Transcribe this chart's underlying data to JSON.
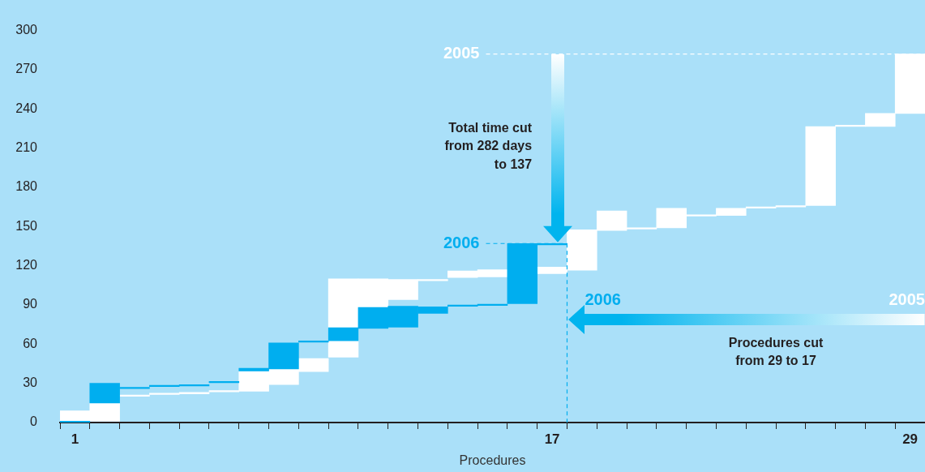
{
  "chart_data": {
    "type": "bar",
    "xlabel": "Procedures",
    "categories": [
      "1",
      null,
      null,
      null,
      null,
      null,
      null,
      null,
      null,
      null,
      null,
      null,
      null,
      null,
      null,
      null,
      "17",
      null,
      null,
      null,
      null,
      null,
      null,
      null,
      null,
      null,
      null,
      null,
      "29"
    ],
    "series": [
      {
        "color": "#ffffff",
        "base": [
          1,
          1,
          20,
          21.5,
          22,
          23.5,
          24,
          29,
          39,
          50,
          88,
          94,
          108.5,
          111,
          111.5,
          null,
          114,
          116.5,
          147,
          148,
          149,
          158,
          158.5,
          164,
          165,
          166,
          226.5,
          226.5,
          236.5
        ],
        "values": [
          8,
          14,
          1,
          1,
          1,
          1,
          15,
          12,
          10,
          60,
          22,
          15.5,
          1,
          5,
          5.5,
          null,
          5,
          31,
          15,
          1,
          15,
          1,
          5.5,
          1,
          1,
          60.5,
          1,
          10,
          45.5
        ]
      },
      {
        "color": "#00aeef",
        "base": [
          0,
          15,
          26,
          27.5,
          28,
          30.5,
          39.5,
          41,
          61.5,
          62.5,
          72,
          73,
          83.5,
          89,
          89.5,
          91,
          136,
          null,
          null,
          null,
          null,
          null,
          null,
          null,
          null,
          null,
          null,
          null,
          null
        ],
        "values": [
          1,
          15,
          1,
          1,
          1,
          1,
          2,
          20,
          1,
          10,
          16,
          16,
          5,
          1,
          1,
          46,
          1,
          null,
          null,
          null,
          null,
          null,
          null,
          null,
          null,
          null,
          null,
          null,
          null
        ]
      }
    ],
    "ylim": [
      0,
      300
    ],
    "yticks": [
      0,
      30,
      60,
      90,
      120,
      150,
      180,
      210,
      240,
      270,
      300
    ],
    "ref_lines": [
      {
        "axis": "y",
        "value": 282,
        "label": null,
        "color": "#ffffff",
        "line_style": "dashed"
      },
      {
        "axis": "y",
        "value": 137,
        "label": null,
        "color": "#00aeef",
        "line_style": "dashed"
      },
      {
        "axis": "x",
        "value": "17",
        "label": null,
        "color": "#00aeef",
        "line_style": "dashed"
      }
    ],
    "annotations": [
      "2005",
      "2006",
      "Total time cut\nfrom 282 days\nto 137",
      "2006",
      "Procedures cut\nfrom 29 to 17",
      "2005"
    ]
  }
}
